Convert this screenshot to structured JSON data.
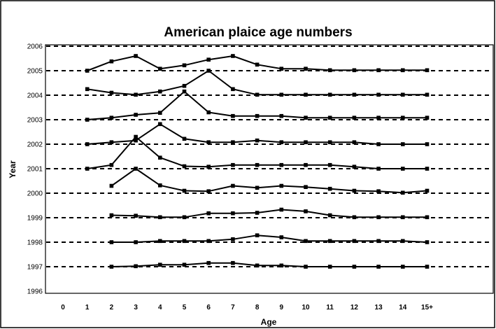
{
  "chart_data": {
    "type": "line",
    "title": "American plaice age numbers",
    "xlabel": "Age",
    "ylabel": "Year",
    "x_categories": [
      "0",
      "1",
      "2",
      "3",
      "4",
      "5",
      "6",
      "7",
      "8",
      "9",
      "10",
      "11",
      "12",
      "13",
      "14",
      "15+"
    ],
    "y_ticks": [
      "1996",
      "1997",
      "1998",
      "1999",
      "2000",
      "2001",
      "2002",
      "2003",
      "2004",
      "2005",
      "2006"
    ],
    "ylim": [
      1996,
      2006
    ],
    "grid": "dashed-horizontal",
    "legend": "none",
    "colors": {
      "series": "#000000",
      "grid": "#000000",
      "background": "#ffffff"
    },
    "series": [
      {
        "baseline": 1997,
        "x": [
          2,
          3,
          4,
          5,
          6,
          7,
          8,
          9,
          10,
          11,
          12,
          13,
          14,
          15
        ],
        "y": [
          1997.0,
          1997.02,
          1997.08,
          1997.08,
          1997.15,
          1997.15,
          1997.05,
          1997.05,
          1997.0,
          1997.0,
          1997.0,
          1997.0,
          1997.0,
          1997.0
        ]
      },
      {
        "baseline": 1998,
        "x": [
          2,
          3,
          4,
          5,
          6,
          7,
          8,
          9,
          10,
          11,
          12,
          13,
          14,
          15
        ],
        "y": [
          1998.0,
          1998.0,
          1998.05,
          1998.05,
          1998.05,
          1998.12,
          1998.28,
          1998.2,
          1998.05,
          1998.05,
          1998.05,
          1998.05,
          1998.05,
          1998.0
        ]
      },
      {
        "baseline": 1999,
        "x": [
          2,
          3,
          4,
          5,
          6,
          7,
          8,
          9,
          10,
          11,
          12,
          13,
          14,
          15
        ],
        "y": [
          1999.1,
          1999.08,
          1999.02,
          1999.02,
          1999.18,
          1999.18,
          1999.2,
          1999.33,
          1999.26,
          1999.1,
          1999.02,
          1999.02,
          1999.02,
          1999.02
        ]
      },
      {
        "baseline": 2000,
        "x": [
          2,
          3,
          4,
          5,
          6,
          7,
          8,
          9,
          10,
          11,
          12,
          13,
          14,
          15
        ],
        "y": [
          2000.3,
          2001.0,
          2000.32,
          2000.1,
          2000.08,
          2000.3,
          2000.22,
          2000.3,
          2000.25,
          2000.18,
          2000.1,
          2000.08,
          2000.02,
          2000.1
        ]
      },
      {
        "baseline": 2001,
        "x": [
          1,
          2,
          3,
          4,
          5,
          6,
          7,
          8,
          9,
          10,
          11,
          12,
          13,
          14,
          15
        ],
        "y": [
          2001.0,
          2001.15,
          2002.3,
          2001.45,
          2001.1,
          2001.08,
          2001.15,
          2001.15,
          2001.15,
          2001.15,
          2001.15,
          2001.08,
          2001.0,
          2001.0,
          2001.0
        ]
      },
      {
        "baseline": 2002,
        "x": [
          1,
          2,
          3,
          4,
          5,
          6,
          7,
          8,
          9,
          10,
          11,
          12,
          13,
          14,
          15
        ],
        "y": [
          2002.0,
          2002.08,
          2002.15,
          2002.82,
          2002.22,
          2002.08,
          2002.08,
          2002.15,
          2002.08,
          2002.08,
          2002.08,
          2002.08,
          2002.0,
          2002.0,
          2002.0
        ]
      },
      {
        "baseline": 2003,
        "x": [
          1,
          2,
          3,
          4,
          5,
          6,
          7,
          8,
          9,
          10,
          11,
          12,
          13,
          14,
          15
        ],
        "y": [
          2003.0,
          2003.08,
          2003.2,
          2003.28,
          2004.15,
          2003.3,
          2003.15,
          2003.15,
          2003.15,
          2003.08,
          2003.08,
          2003.08,
          2003.08,
          2003.08,
          2003.08
        ]
      },
      {
        "baseline": 2004,
        "x": [
          1,
          2,
          3,
          4,
          5,
          6,
          7,
          8,
          9,
          10,
          11,
          12,
          13,
          14,
          15
        ],
        "y": [
          2004.25,
          2004.1,
          2004.02,
          2004.15,
          2004.38,
          2005.0,
          2004.25,
          2004.02,
          2004.02,
          2004.02,
          2004.02,
          2004.02,
          2004.02,
          2004.02,
          2004.02
        ]
      },
      {
        "baseline": 2005,
        "x": [
          1,
          2,
          3,
          4,
          5,
          6,
          7,
          8,
          9,
          10,
          11,
          12,
          13,
          14,
          15
        ],
        "y": [
          2005.0,
          2005.38,
          2005.6,
          2005.08,
          2005.22,
          2005.45,
          2005.6,
          2005.25,
          2005.08,
          2005.08,
          2005.02,
          2005.02,
          2005.02,
          2005.02,
          2005.02
        ]
      }
    ]
  }
}
